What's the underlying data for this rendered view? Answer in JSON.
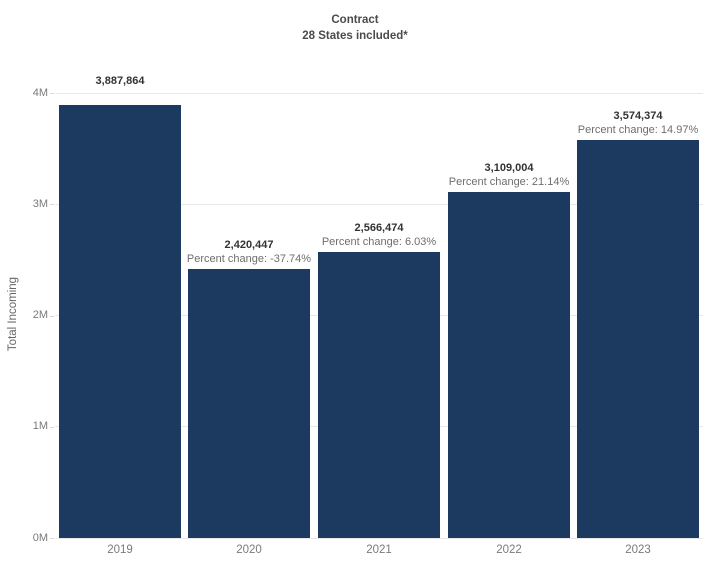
{
  "title": "Contract",
  "subtitle": "28 States included*",
  "chart_data": {
    "type": "bar",
    "title": "Contract",
    "subtitle": "28 States included*",
    "categories": [
      "2019",
      "2020",
      "2021",
      "2022",
      "2023"
    ],
    "values": [
      3887864,
      2420447,
      2566474,
      3109004,
      3574374
    ],
    "value_labels": [
      "3,887,864",
      "2,420,447",
      "2,566,474",
      "3,109,004",
      "3,574,374"
    ],
    "percent_change_labels": [
      null,
      "Percent change: -37.74%",
      "Percent change: 6.03%",
      "Percent change: 21.14%",
      "Percent change: 14.97%"
    ],
    "xlabel": "",
    "ylabel": "Total Incoming",
    "ylim": [
      0,
      4000000
    ],
    "yticks": [
      {
        "value": 0,
        "label": "0M"
      },
      {
        "value": 1000000,
        "label": "1M"
      },
      {
        "value": 2000000,
        "label": "2M"
      },
      {
        "value": 3000000,
        "label": "3M"
      },
      {
        "value": 4000000,
        "label": "4M"
      }
    ],
    "grid": "horizontal",
    "legend": "none",
    "colors": {
      "bar": "#1c3a5f",
      "gridline": "#e8e8e8",
      "value_label": "#333333",
      "percent_label": "#6e6e6e",
      "axis_label": "#7a7a7a",
      "axis_title": "#666666",
      "title": "#4b4b4b"
    }
  }
}
